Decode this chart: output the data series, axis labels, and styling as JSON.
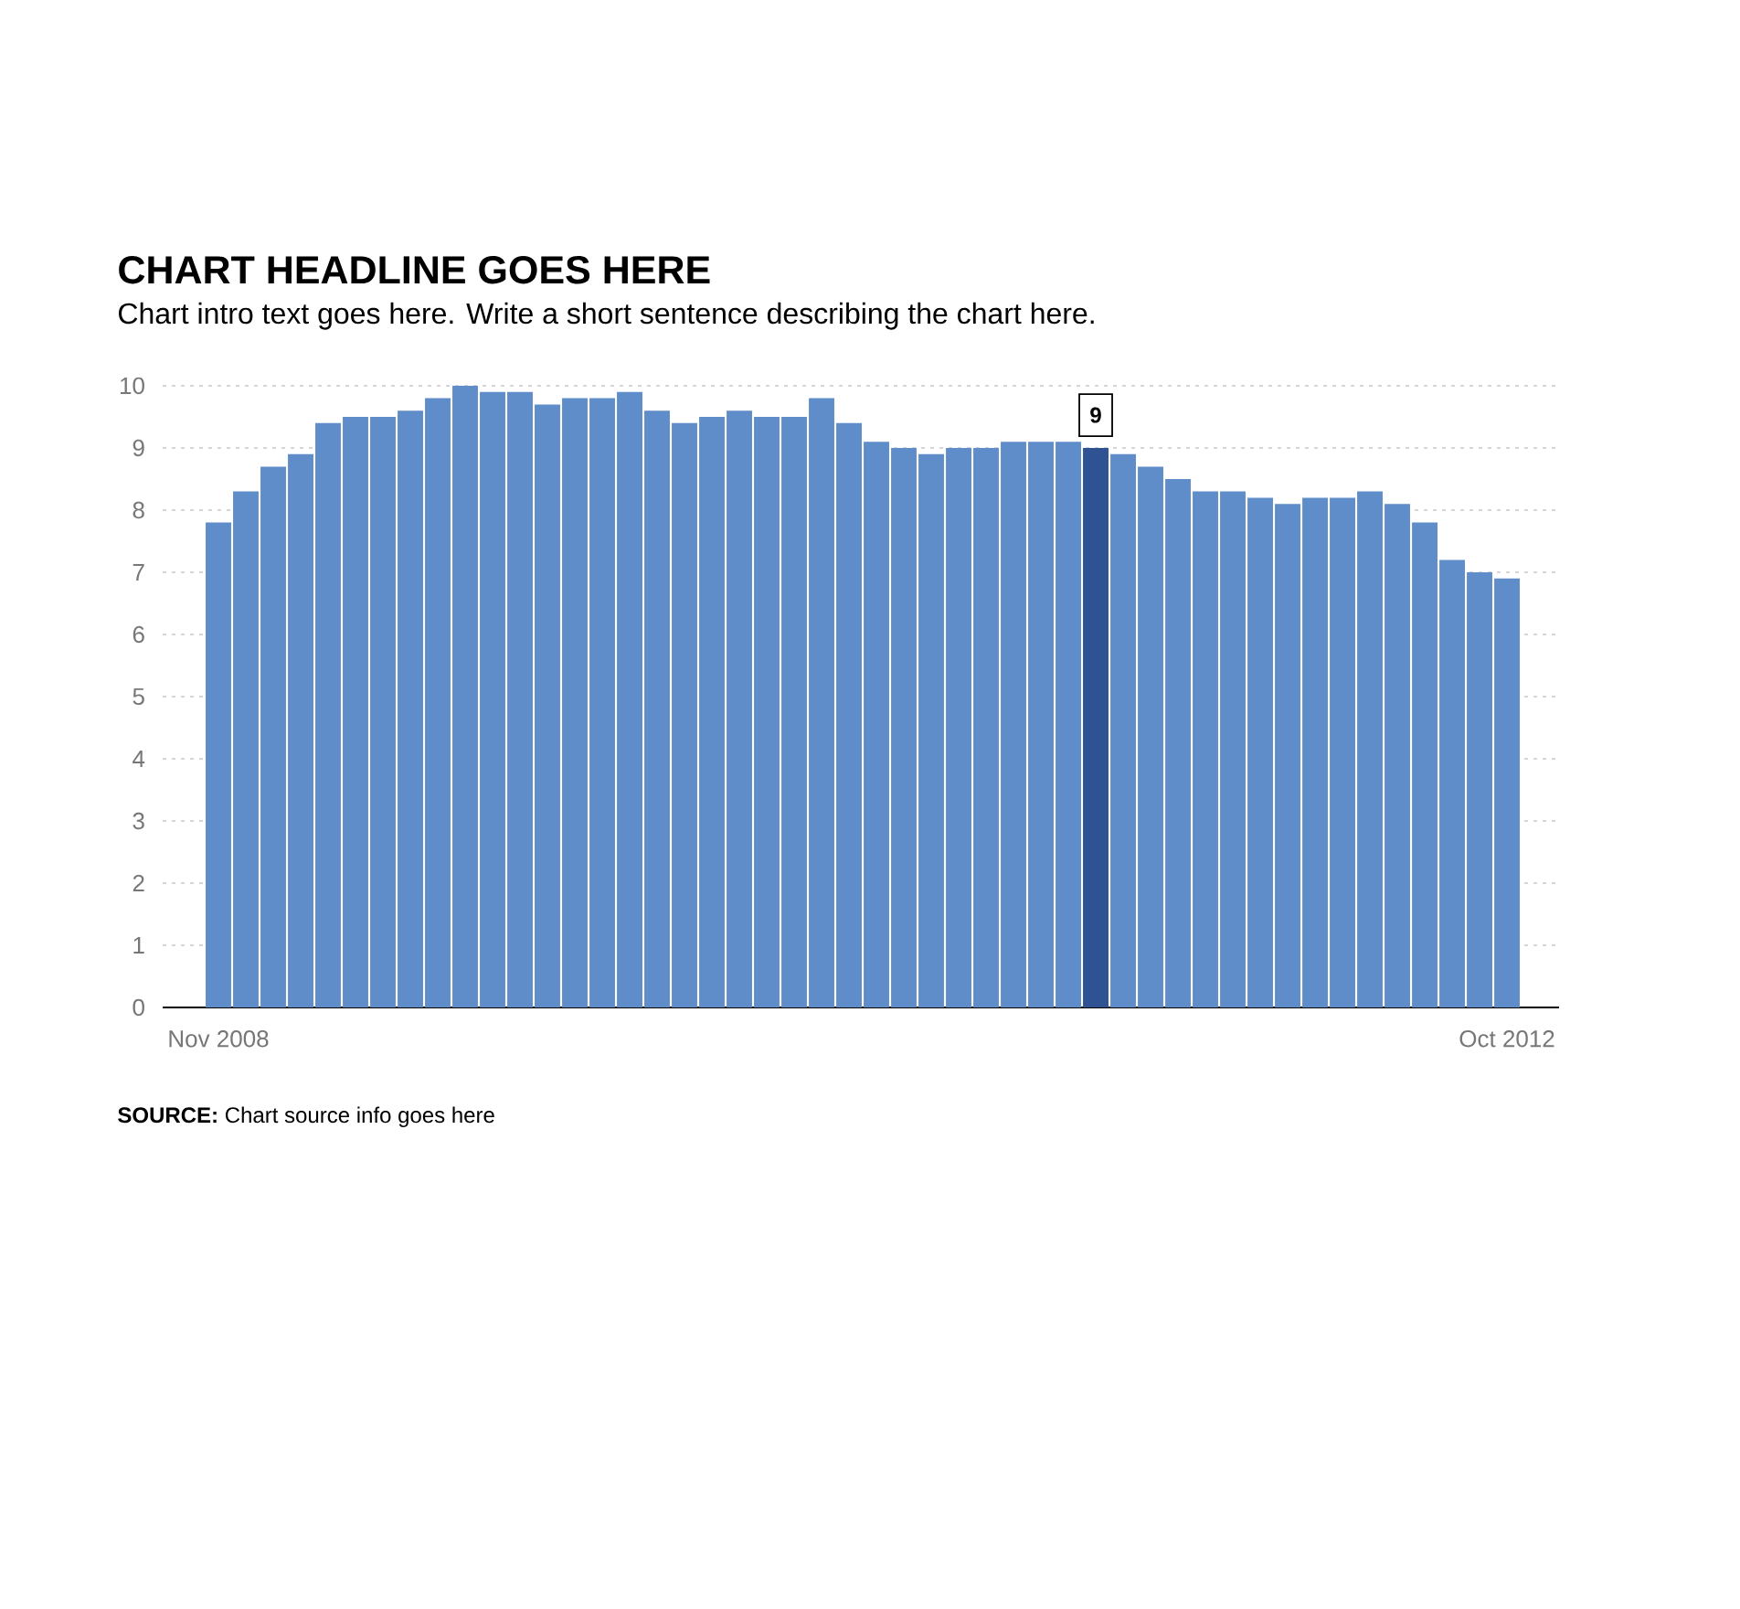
{
  "chart_data": {
    "type": "bar",
    "title": "CHART HEADLINE GOES HERE",
    "subtitle": "Chart intro text goes here. Write a short sentence describing the chart here.",
    "annotations": [
      "**SOURCE:** Chart source info goes here"
    ],
    "categories": [
      "Nov 2008",
      null,
      null,
      null,
      null,
      null,
      null,
      null,
      null,
      null,
      null,
      null,
      null,
      null,
      null,
      null,
      null,
      null,
      null,
      null,
      null,
      null,
      null,
      null,
      null,
      null,
      null,
      null,
      null,
      null,
      null,
      null,
      null,
      null,
      null,
      null,
      null,
      null,
      null,
      null,
      null,
      null,
      null,
      null,
      null,
      null,
      null,
      "Oct 2012"
    ],
    "values": [
      7.8,
      8.3,
      8.7,
      8.9,
      9.4,
      9.5,
      9.5,
      9.6,
      9.8,
      10.0,
      9.9,
      9.9,
      9.7,
      9.8,
      9.8,
      9.9,
      9.6,
      9.4,
      9.5,
      9.6,
      9.5,
      9.5,
      9.8,
      9.4,
      9.1,
      9.0,
      8.9,
      9.0,
      9.0,
      9.1,
      9.1,
      9.1,
      9.0,
      8.9,
      8.7,
      8.5,
      8.3,
      8.3,
      8.2,
      8.1,
      8.2,
      8.2,
      8.3,
      8.1,
      7.8,
      7.2,
      7.0,
      6.9
    ],
    "colors": [
      "#5f8dca",
      "#5f8dca",
      "#5f8dca",
      "#5f8dca",
      "#5f8dca",
      "#5f8dca",
      "#5f8dca",
      "#5f8dca",
      "#5f8dca",
      "#5f8dca",
      "#5f8dca",
      "#5f8dca",
      "#5f8dca",
      "#5f8dca",
      "#5f8dca",
      "#5f8dca",
      "#5f8dca",
      "#5f8dca",
      "#5f8dca",
      "#5f8dca",
      "#5f8dca",
      "#5f8dca",
      "#5f8dca",
      "#5f8dca",
      "#5f8dca",
      "#5f8dca",
      "#5f8dca",
      "#5f8dca",
      "#5f8dca",
      "#5f8dca",
      "#5f8dca",
      "#5f8dca",
      "#2f5293",
      "#5f8dca",
      "#5f8dca",
      "#5f8dca",
      "#5f8dca",
      "#5f8dca",
      "#5f8dca",
      "#5f8dca",
      "#5f8dca",
      "#5f8dca",
      "#5f8dca",
      "#5f8dca",
      "#5f8dca",
      "#5f8dca",
      "#5f8dca",
      "#5f8dca"
    ],
    "value_labels": [
      null,
      null,
      null,
      null,
      null,
      null,
      null,
      null,
      null,
      null,
      null,
      null,
      null,
      null,
      null,
      null,
      null,
      null,
      null,
      null,
      null,
      null,
      null,
      null,
      null,
      null,
      null,
      null,
      null,
      null,
      null,
      null,
      "9",
      null,
      null,
      null,
      null,
      null,
      null,
      null,
      null,
      null,
      null,
      null,
      null,
      null,
      null,
      null
    ],
    "ylim": [
      0,
      10
    ],
    "yticks": [
      0,
      1,
      2,
      3,
      4,
      5,
      6,
      7,
      8,
      9,
      10
    ],
    "grid": "y"
  }
}
